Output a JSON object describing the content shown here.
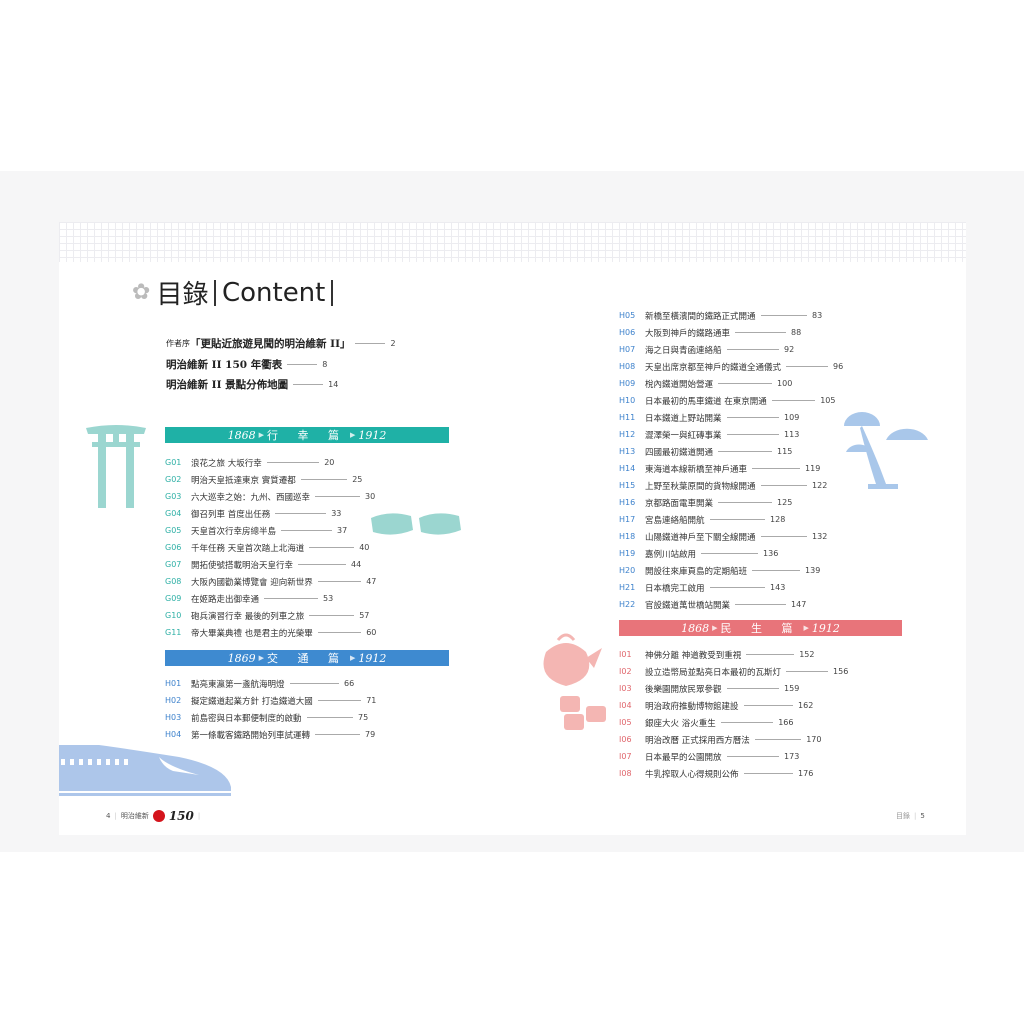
{
  "title": {
    "zh": "目錄",
    "en": "Content"
  },
  "intro": [
    {
      "prefix": "作者序",
      "title": "「更貼近旅遊見聞的明治維新 II」",
      "page": "2"
    },
    {
      "prefix": "",
      "title": "明治維新 II 150 年衢表",
      "page": "8"
    },
    {
      "prefix": "",
      "title": "明治維新 II 景點分佈地圖",
      "page": "14"
    }
  ],
  "sections": [
    {
      "start": "1868",
      "name": "行 幸 篇",
      "end": "1912",
      "color": "#1fb1a6",
      "code_color": "#2fb0a6",
      "entries": [
        {
          "code": "G01",
          "title": "浪花之旅 大坂行幸",
          "page": "20"
        },
        {
          "code": "G02",
          "title": "明治天皇抵達東京 實質遷都",
          "page": "25"
        },
        {
          "code": "G03",
          "title": "六大巡幸之始：九州、西國巡幸",
          "page": "30"
        },
        {
          "code": "G04",
          "title": "御召列車 首度出任務",
          "page": "33"
        },
        {
          "code": "G05",
          "title": "天皇首次行幸房總半島",
          "page": "37"
        },
        {
          "code": "G06",
          "title": "千年任務 天皇首次踏上北海道",
          "page": "40"
        },
        {
          "code": "G07",
          "title": "開拓使號搭載明治天皇行幸",
          "page": "44"
        },
        {
          "code": "G08",
          "title": "大阪內國勸業博覽會 迎向新世界",
          "page": "47"
        },
        {
          "code": "G09",
          "title": "在姬路走出御幸通",
          "page": "53"
        },
        {
          "code": "G10",
          "title": "砲兵演習行幸 最後的列車之旅",
          "page": "57"
        },
        {
          "code": "G11",
          "title": "帝大畢業典禮 也是君主的光榮畢",
          "page": "60"
        }
      ]
    },
    {
      "start": "1869",
      "name": "交 通 篇",
      "end": "1912",
      "color": "#3e8ad0",
      "code_color": "#3e82cc",
      "entries": [
        {
          "code": "H01",
          "title": "點亮東瀛第一盞航海明燈",
          "page": "66"
        },
        {
          "code": "H02",
          "title": "擬定鐵道起業方針 打造鐵道大國",
          "page": "71"
        },
        {
          "code": "H03",
          "title": "前島密與日本郵便制度的啟動",
          "page": "75"
        },
        {
          "code": "H04",
          "title": "第一條載客鐵路開始列車試運轉",
          "page": "79"
        },
        {
          "code": "H05",
          "title": "新橋至橫濱間的鐵路正式開通",
          "page": "83"
        },
        {
          "code": "H06",
          "title": "大阪到神戶的鐵路通車",
          "page": "88"
        },
        {
          "code": "H07",
          "title": "海之日與青函連絡船",
          "page": "92"
        },
        {
          "code": "H08",
          "title": "天皇出席京都至神戶的鐵道全通儀式",
          "page": "96"
        },
        {
          "code": "H09",
          "title": "梲內鐵道開始營運",
          "page": "100"
        },
        {
          "code": "H10",
          "title": "日本最初的馬車鐵道 在東京開通",
          "page": "105"
        },
        {
          "code": "H11",
          "title": "日本鐵道上野站開業",
          "page": "109"
        },
        {
          "code": "H12",
          "title": "澀澤榮一與紅磚事業",
          "page": "113"
        },
        {
          "code": "H13",
          "title": "四國最初鐵道開通",
          "page": "115"
        },
        {
          "code": "H14",
          "title": "東海道本線新橋至神戶通車",
          "page": "119"
        },
        {
          "code": "H15",
          "title": "上野至秋葉原間的貨物線開通",
          "page": "122"
        },
        {
          "code": "H16",
          "title": "京都路面電車開業",
          "page": "125"
        },
        {
          "code": "H17",
          "title": "宮島連絡船開航",
          "page": "128"
        },
        {
          "code": "H18",
          "title": "山陽鐵道神戶至下關全線開通",
          "page": "132"
        },
        {
          "code": "H19",
          "title": "嘉例川站啟用",
          "page": "136"
        },
        {
          "code": "H20",
          "title": "開設往來庫頁島的定期船班",
          "page": "139"
        },
        {
          "code": "H21",
          "title": "日本橋完工啟用",
          "page": "143"
        },
        {
          "code": "H22",
          "title": "官設鐵道萬世橋站開業",
          "page": "147"
        }
      ]
    },
    {
      "start": "1868",
      "name": "民 生 篇",
      "end": "1912",
      "color": "#e8747a",
      "code_color": "#e0666c",
      "entries": [
        {
          "code": "I01",
          "title": "神佛分離 神道教受到重視",
          "page": "152"
        },
        {
          "code": "I02",
          "title": "設立造幣局並點亮日本最初的瓦斯灯",
          "page": "156"
        },
        {
          "code": "I03",
          "title": "後樂園開放民眾參觀",
          "page": "159"
        },
        {
          "code": "I04",
          "title": "明治政府推動博物館建設",
          "page": "162"
        },
        {
          "code": "I05",
          "title": "銀座大火 浴火重生",
          "page": "166"
        },
        {
          "code": "I06",
          "title": "明治改曆 正式採用西方曆法",
          "page": "170"
        },
        {
          "code": "I07",
          "title": "日本最早的公園開放",
          "page": "173"
        },
        {
          "code": "I08",
          "title": "牛乳搾取人心得規則公佈",
          "page": "176"
        }
      ]
    }
  ],
  "footer_left": {
    "page": "4",
    "book": "明治維新",
    "num": "150"
  },
  "footer_right": {
    "label": "目錄",
    "page": "5"
  }
}
